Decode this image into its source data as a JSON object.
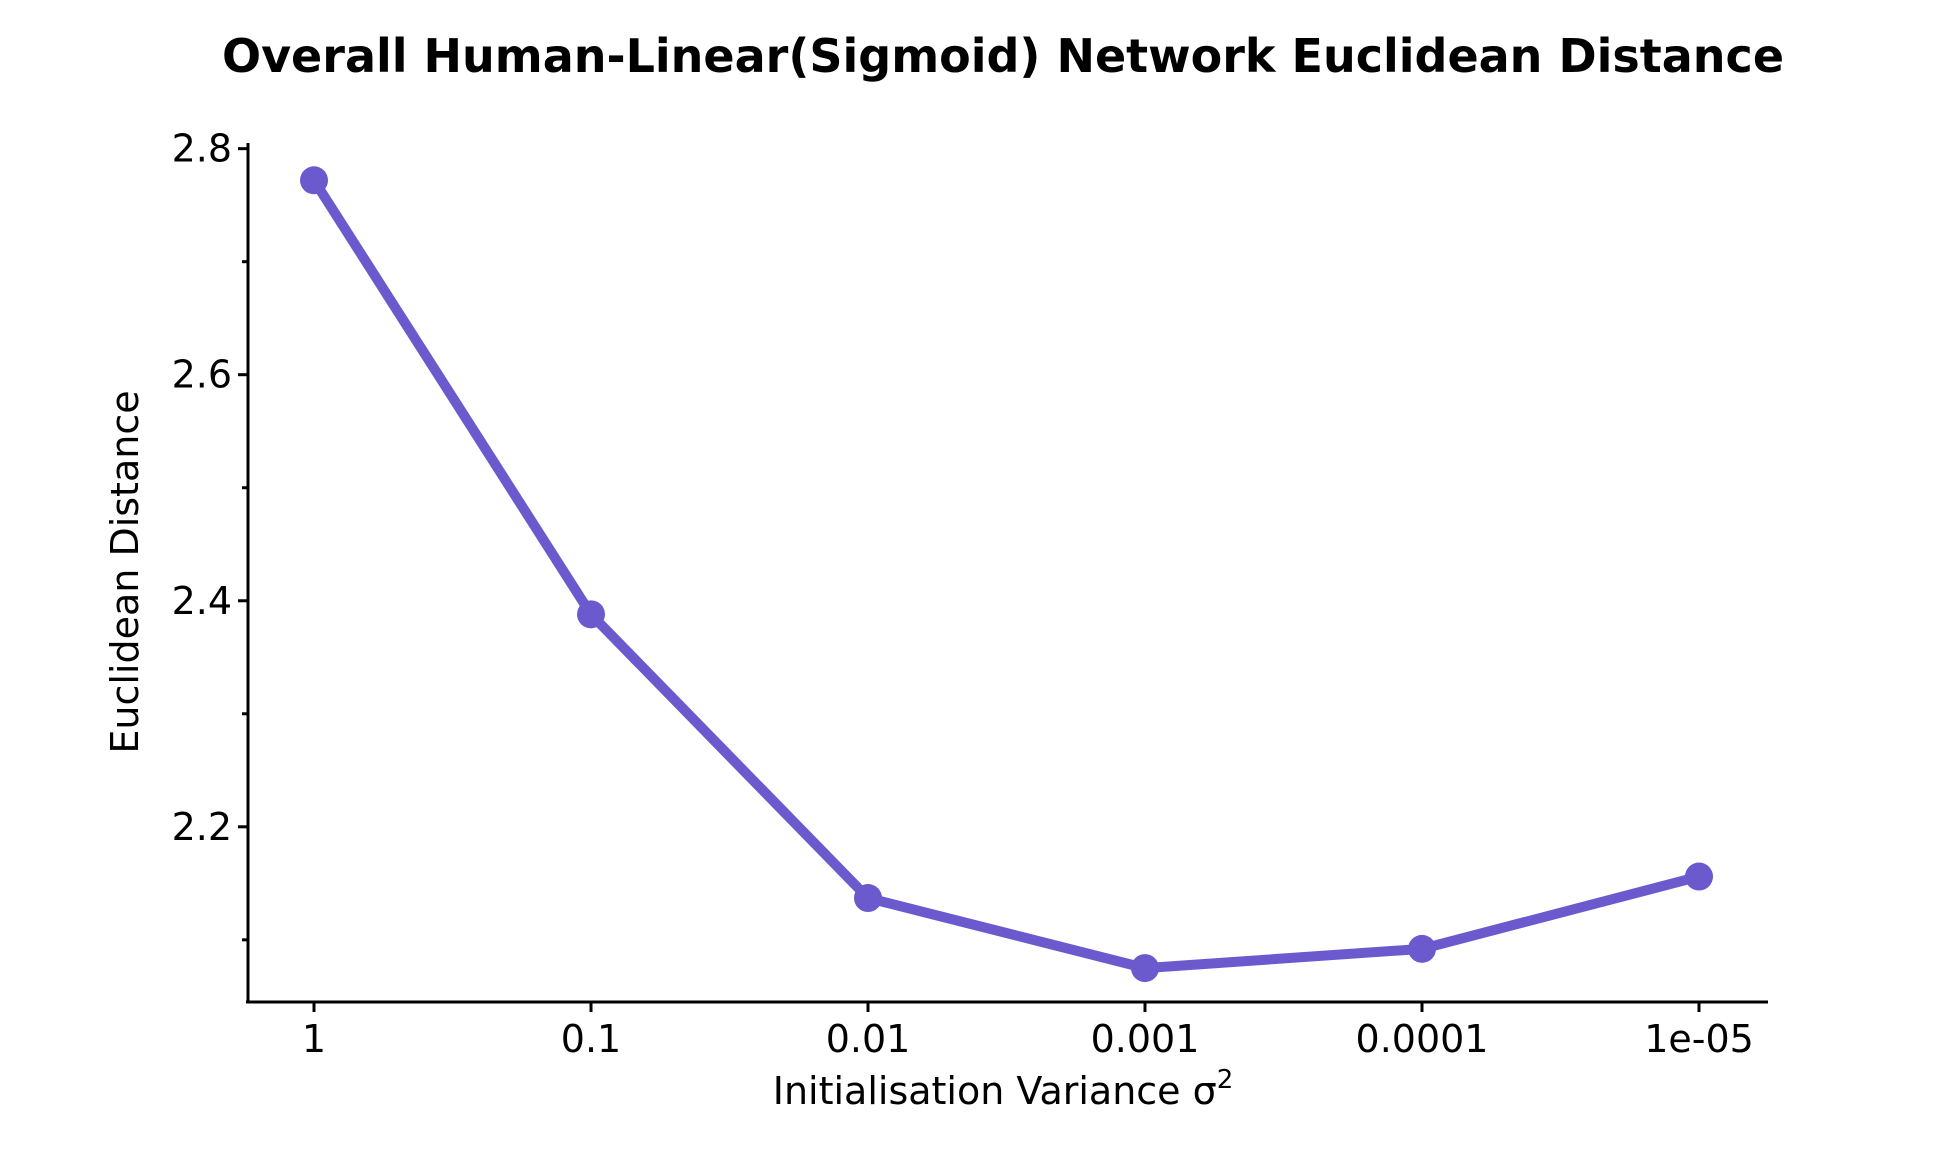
{
  "chart_data": {
    "type": "line",
    "title": "Overall Human-Linear(Sigmoid) Network Euclidean Distance",
    "xlabel": "Initialisation Variance σ",
    "xlabel_superscript": "2",
    "ylabel": "Euclidean Distance",
    "categories": [
      "1",
      "0.1",
      "0.01",
      "0.001",
      "0.0001",
      "1e-05"
    ],
    "series": [
      {
        "values": [
          2.772,
          2.388,
          2.137,
          2.075,
          2.092,
          2.156
        ]
      }
    ],
    "ylim": [
      2.045,
      2.805
    ],
    "yticks_major": [
      "2.2",
      "2.4",
      "2.6",
      "2.8"
    ],
    "yticks_minor": [
      2.1,
      2.3,
      2.5,
      2.7
    ],
    "grid": false,
    "legend": "none",
    "color": "#6a5acd"
  }
}
